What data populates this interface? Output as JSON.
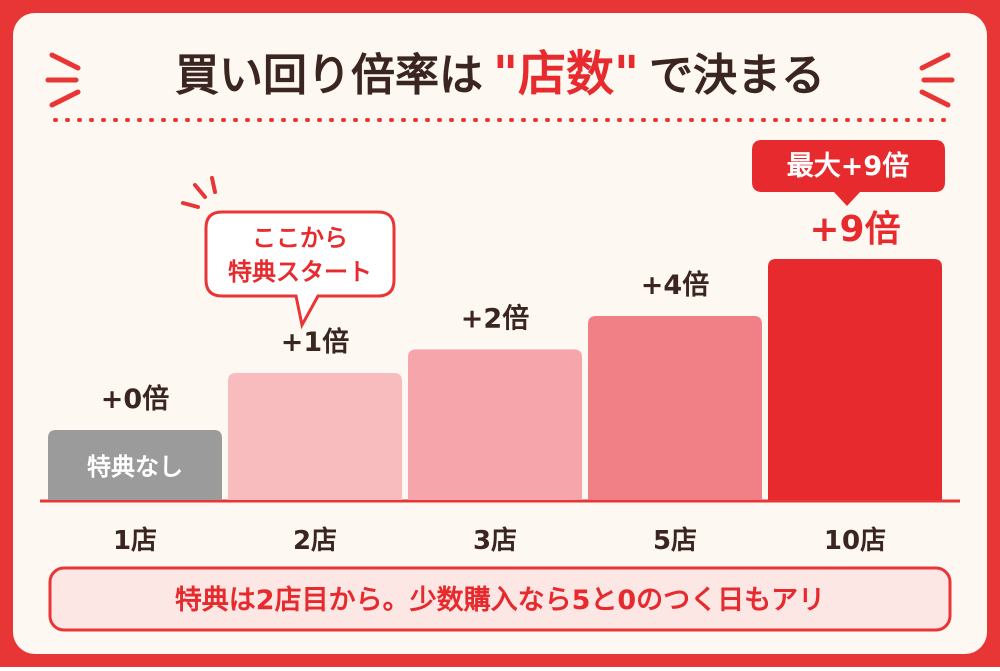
{
  "chart_data": {
    "type": "bar",
    "title": [
      "買い回り倍率は",
      "\"店数\"",
      "で決まる"
    ],
    "categories": [
      "1店",
      "2店",
      "3店",
      "5店",
      "10店"
    ],
    "values": [
      0,
      1,
      2,
      4,
      9
    ],
    "value_labels": [
      "+0倍",
      "+1倍",
      "+2倍",
      "+4倍",
      "+9倍"
    ],
    "colors": [
      "#9b9b9b",
      "#f9bcbe",
      "#f6a6ab",
      "#f07f86",
      "#e62a2e"
    ],
    "bar_notes": [
      "特典なし",
      null,
      null,
      null,
      null
    ],
    "callout_start": [
      "ここから",
      "特典スタート"
    ],
    "callout_max": "最大+9倍",
    "note": "特典は2店目から。少数購入なら5と0のつく日もアリ"
  }
}
